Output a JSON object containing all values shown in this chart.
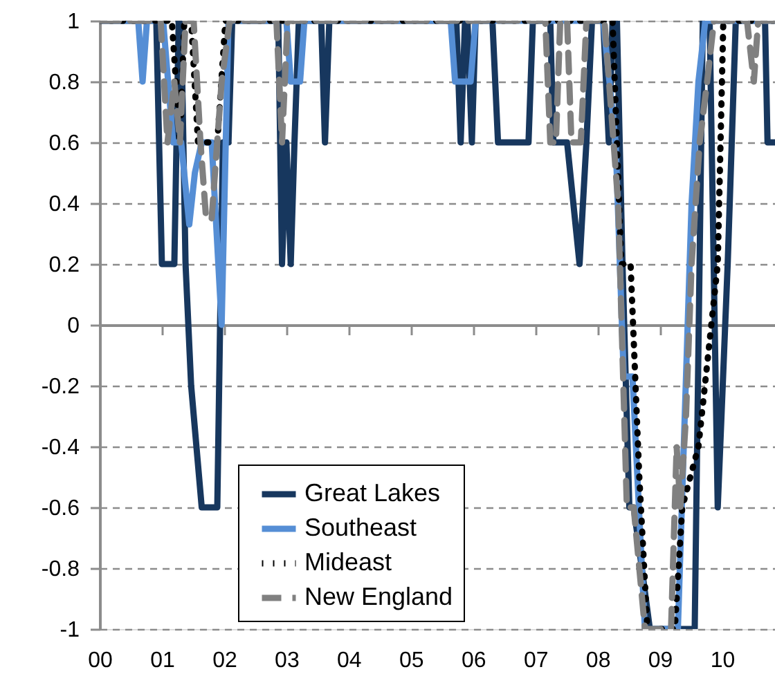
{
  "chart_data": {
    "type": "line",
    "xlim": [
      2000,
      2010.85
    ],
    "xticks": [
      {
        "value": 2000,
        "label": "00"
      },
      {
        "value": 2001,
        "label": "01"
      },
      {
        "value": 2002,
        "label": "02"
      },
      {
        "value": 2003,
        "label": "03"
      },
      {
        "value": 2004,
        "label": "04"
      },
      {
        "value": 2005,
        "label": "05"
      },
      {
        "value": 2006,
        "label": "06"
      },
      {
        "value": 2007,
        "label": "07"
      },
      {
        "value": 2008,
        "label": "08"
      },
      {
        "value": 2009,
        "label": "09"
      },
      {
        "value": 2010,
        "label": "10"
      }
    ],
    "ylim": [
      -1,
      1
    ],
    "yticks": [
      {
        "value": -1,
        "label": "-1"
      },
      {
        "value": -0.8,
        "label": "-0.8"
      },
      {
        "value": -0.6,
        "label": "-0.6"
      },
      {
        "value": -0.4,
        "label": "-0.4"
      },
      {
        "value": -0.2,
        "label": "-0.2"
      },
      {
        "value": 0,
        "label": "0"
      },
      {
        "value": 0.2,
        "label": "0.2"
      },
      {
        "value": 0.4,
        "label": "0.4"
      },
      {
        "value": 0.6,
        "label": "0.6"
      },
      {
        "value": 0.8,
        "label": "0.8"
      },
      {
        "value": 1,
        "label": "1"
      }
    ],
    "grid": "y",
    "legend": "bottom",
    "marker": "none",
    "series": [
      {
        "name": "Great Lakes",
        "color": "#17375e",
        "line_style": "solid",
        "x": [
          2000,
          2000.91,
          2001,
          2001.2,
          2001.27,
          2001.31,
          2001.38,
          2001.47,
          2001.64,
          2001.89,
          2001.98,
          2002.07,
          2002.13,
          2002.87,
          2002.93,
          2003,
          2003.07,
          2003.13,
          2003.2,
          2003.56,
          2003.62,
          2003.69,
          2005.73,
          2005.8,
          2005.87,
          2005.91,
          2005.98,
          2006.04,
          2006.31,
          2006.4,
          2006.89,
          2006.96,
          2007.24,
          2007.29,
          2007.51,
          2007.71,
          2007.82,
          2007.91,
          2008.09,
          2008.18,
          2008.24,
          2008.31,
          2008.4,
          2008.51,
          2008.58,
          2008.84,
          2009.56,
          2009.69,
          2009.8,
          2009.93,
          2010.09,
          2010.22,
          2010.69,
          2010.73,
          2010.84
        ],
        "values": [
          1,
          1,
          0.2,
          0.2,
          1,
          1,
          0.2,
          -0.2,
          -0.6,
          -0.6,
          0.6,
          0.6,
          1,
          1,
          0.2,
          0.6,
          0.2,
          0.6,
          1,
          1,
          0.6,
          1,
          1,
          0.6,
          1,
          1,
          0.6,
          1,
          1,
          0.6,
          0.6,
          1,
          1,
          0.6,
          0.6,
          0.2,
          0.6,
          1,
          1,
          0.6,
          1,
          1,
          0.2,
          -0.6,
          -0.6,
          -1,
          -1,
          1,
          1,
          -0.6,
          0.2,
          1,
          1,
          0.6,
          0.6
        ]
      },
      {
        "name": "Southeast",
        "color": "#558ed5",
        "line_style": "solid",
        "x": [
          2000,
          2000.62,
          2000.69,
          2000.76,
          2001.02,
          2001.18,
          2001.31,
          2001.44,
          2001.53,
          2001.64,
          2001.8,
          2001.96,
          2002.07,
          2003,
          2003.07,
          2003.22,
          2003.29,
          2005.64,
          2005.71,
          2005.96,
          2006.04,
          2008.09,
          2008.29,
          2008.42,
          2008.56,
          2008.76,
          2009.29,
          2009.51,
          2009.62,
          2009.73,
          2010.84
        ],
        "values": [
          1,
          1,
          0.8,
          1,
          1,
          0.6,
          0.6,
          0.33,
          0.5,
          0.6,
          0.6,
          0,
          1,
          1,
          0.8,
          0.8,
          1,
          1,
          0.8,
          0.8,
          1,
          1,
          0.6,
          -0.17,
          -0.17,
          -1,
          -1,
          0.4,
          0.8,
          1,
          1
        ]
      },
      {
        "name": "Mideast",
        "color": "#000000",
        "line_style": "dotted",
        "x": [
          2000,
          2001.16,
          2001.29,
          2001.36,
          2001.47,
          2001.58,
          2001.89,
          2002.02,
          2008.24,
          2008.38,
          2008.53,
          2008.67,
          2008.8,
          2009.24,
          2009.36,
          2009.62,
          2009.93,
          2010.02,
          2010.84
        ],
        "values": [
          1,
          1,
          0.6,
          1,
          1,
          0.6,
          0.6,
          1,
          1,
          0.2,
          0.2,
          -0.5,
          -1,
          -1,
          -0.6,
          -0.4,
          0.2,
          1,
          1
        ]
      },
      {
        "name": "New England",
        "color": "#808080",
        "line_style": "dashed",
        "x": [
          2000,
          2000.98,
          2001.09,
          2001.2,
          2001.29,
          2001.38,
          2001.51,
          2001.62,
          2001.71,
          2001.8,
          2001.96,
          2002.09,
          2002.84,
          2002.93,
          2003.02,
          2007.16,
          2007.24,
          2007.33,
          2007.4,
          2007.51,
          2007.58,
          2007.73,
          2007.82,
          2008.11,
          2008.33,
          2008.47,
          2008.58,
          2008.76,
          2009.18,
          2009.27,
          2009.33,
          2009.42,
          2009.51,
          2009.64,
          2009.76,
          2009.87,
          2010.4,
          2010.51,
          2010.58,
          2010.84
        ],
        "values": [
          1,
          1,
          0.6,
          0.8,
          0.6,
          1,
          1,
          0.6,
          0.35,
          0.35,
          0.8,
          1,
          1,
          0.6,
          1,
          1,
          0.6,
          0.6,
          1,
          1,
          0.6,
          0.6,
          1,
          1,
          0.4,
          -0.6,
          -0.6,
          -1,
          -1,
          -0.4,
          -0.6,
          -0.3,
          0.2,
          0.6,
          0.8,
          1,
          1,
          0.8,
          1,
          1
        ]
      }
    ]
  }
}
